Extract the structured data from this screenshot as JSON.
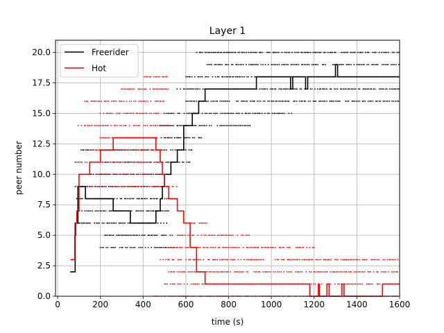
{
  "chart_data": {
    "type": "line",
    "title": "Layer 1",
    "xlabel": "time (s)",
    "ylabel": "peer number",
    "xlim": [
      -10,
      1600
    ],
    "ylim": [
      0,
      21
    ],
    "xticks": [
      0,
      200,
      400,
      600,
      800,
      1000,
      1200,
      1400,
      1600
    ],
    "xtick_labels": [
      "0",
      "200",
      "400",
      "600",
      "800",
      "1000",
      "1200",
      "1400",
      "1600"
    ],
    "yticks": [
      0.0,
      2.5,
      5.0,
      7.5,
      10.0,
      12.5,
      15.0,
      17.5,
      20.0
    ],
    "ytick_labels": [
      "0.0",
      "2.5",
      "5.0",
      "7.5",
      "10.0",
      "12.5",
      "15.0",
      "17.5",
      "20.0"
    ],
    "grid": true,
    "legend_position": "top-left",
    "series": [
      {
        "name": "Freerider",
        "color": "#000000",
        "x": [
          65,
          80,
          82,
          95,
          130,
          260,
          340,
          460,
          480,
          490,
          500,
          530,
          560,
          590,
          630,
          660,
          690,
          930,
          1080,
          1090,
          1100,
          1160,
          1170,
          1300,
          1310,
          1600
        ],
        "y": [
          2,
          2,
          6,
          9,
          8,
          7,
          6,
          7,
          8,
          9,
          10,
          11,
          12,
          14,
          15,
          16,
          17,
          18,
          18,
          17,
          18,
          17,
          18,
          19,
          18,
          18
        ]
      },
      {
        "name": "Hot",
        "color": "#ff0000",
        "x": [
          60,
          75,
          80,
          85,
          90,
          100,
          150,
          200,
          260,
          340,
          460,
          480,
          490,
          500,
          520,
          560,
          590,
          620,
          650,
          690,
          1170,
          1180,
          1220,
          1225,
          1260,
          1270,
          1330,
          1340,
          1510,
          1520,
          1600
        ],
        "y": [
          3,
          3,
          5,
          6,
          7,
          10,
          11,
          12,
          13,
          13,
          12,
          11,
          10,
          9,
          8,
          7,
          6,
          4,
          2,
          1,
          1,
          0,
          1,
          0,
          1,
          0,
          1,
          0,
          0,
          1,
          1
        ]
      }
    ],
    "scatter_rows": [
      {
        "color": "#000000",
        "y": 2,
        "from": 60,
        "to": 80
      },
      {
        "color": "#000000",
        "y": 4,
        "from": 200,
        "to": 560
      },
      {
        "color": "#000000",
        "y": 5,
        "from": 220,
        "to": 540
      },
      {
        "color": "#000000",
        "y": 6,
        "from": 90,
        "to": 520
      },
      {
        "color": "#000000",
        "y": 7,
        "from": 100,
        "to": 520
      },
      {
        "color": "#000000",
        "y": 8,
        "from": 90,
        "to": 560
      },
      {
        "color": "#000000",
        "y": 9,
        "from": 100,
        "to": 520
      },
      {
        "color": "#000000",
        "y": 10,
        "from": 110,
        "to": 500
      },
      {
        "color": "#000000",
        "y": 11,
        "from": 220,
        "to": 620
      },
      {
        "color": "#000000",
        "y": 12,
        "from": 110,
        "to": 640
      },
      {
        "color": "#000000",
        "y": 13,
        "from": 450,
        "to": 680
      },
      {
        "color": "#000000",
        "y": 14,
        "from": 480,
        "to": 900
      },
      {
        "color": "#000000",
        "y": 15,
        "from": 500,
        "to": 1100
      },
      {
        "color": "#000000",
        "y": 16,
        "from": 600,
        "to": 1600
      },
      {
        "color": "#000000",
        "y": 17,
        "from": 560,
        "to": 1600
      },
      {
        "color": "#000000",
        "y": 18,
        "from": 600,
        "to": 1600
      },
      {
        "color": "#000000",
        "y": 19,
        "from": 700,
        "to": 1600
      },
      {
        "color": "#000000",
        "y": 20,
        "from": 650,
        "to": 1600
      },
      {
        "color": "#ff0000",
        "y": 0,
        "from": 450,
        "to": 1600
      },
      {
        "color": "#ff0000",
        "y": 1,
        "from": 500,
        "to": 1600
      },
      {
        "color": "#ff0000",
        "y": 2,
        "from": 520,
        "to": 1600
      },
      {
        "color": "#ff0000",
        "y": 3,
        "from": 480,
        "to": 1600
      },
      {
        "color": "#ff0000",
        "y": 4,
        "from": 520,
        "to": 1200
      },
      {
        "color": "#ff0000",
        "y": 5,
        "from": 560,
        "to": 900
      },
      {
        "color": "#ff0000",
        "y": 6,
        "from": 600,
        "to": 700
      },
      {
        "color": "#ff0000",
        "y": 9,
        "from": 80,
        "to": 560
      },
      {
        "color": "#ff0000",
        "y": 10,
        "from": 100,
        "to": 500
      },
      {
        "color": "#ff0000",
        "y": 11,
        "from": 80,
        "to": 480
      },
      {
        "color": "#ff0000",
        "y": 12,
        "from": 150,
        "to": 500
      },
      {
        "color": "#ff0000",
        "y": 13,
        "from": 200,
        "to": 470
      },
      {
        "color": "#ff0000",
        "y": 14,
        "from": 90,
        "to": 520
      },
      {
        "color": "#ff0000",
        "y": 15,
        "from": 200,
        "to": 480
      },
      {
        "color": "#ff0000",
        "y": 16,
        "from": 120,
        "to": 500
      },
      {
        "color": "#ff0000",
        "y": 17,
        "from": 300,
        "to": 520
      },
      {
        "color": "#ff0000",
        "y": 18,
        "from": 400,
        "to": 520
      }
    ]
  }
}
